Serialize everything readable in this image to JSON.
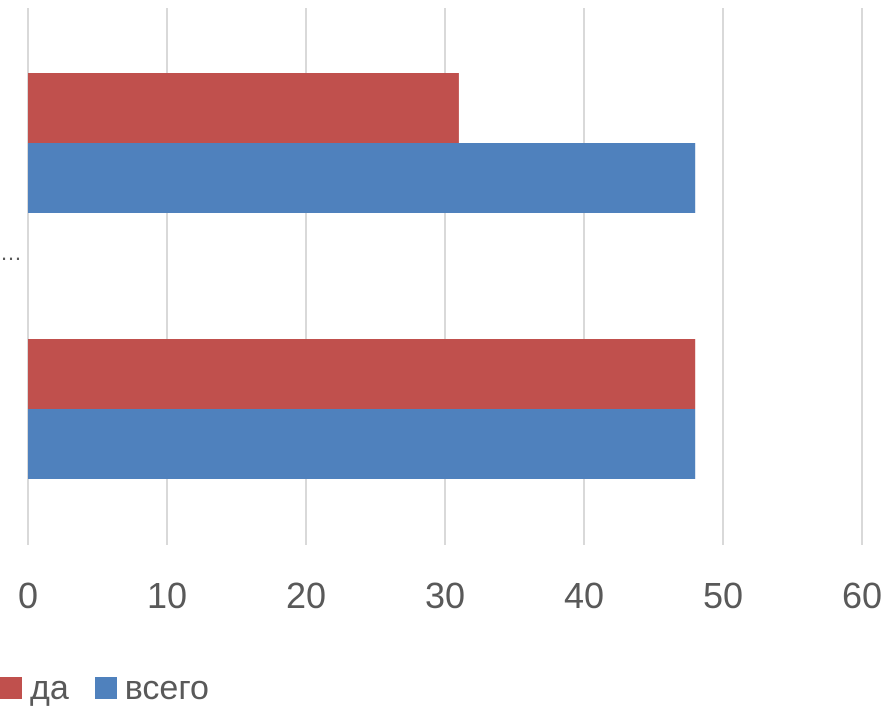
{
  "chart_data": {
    "type": "bar",
    "orientation": "horizontal",
    "categories": [
      "",
      "…"
    ],
    "series": [
      {
        "name": "да",
        "color": "#c0504d",
        "values": [
          48,
          31
        ]
      },
      {
        "name": "всего",
        "color": "#4f81bd",
        "values": [
          48,
          48
        ]
      }
    ],
    "xlim": [
      0,
      60
    ],
    "xticks": [
      "0",
      "10",
      "20",
      "30",
      "40",
      "50",
      "60"
    ],
    "grid": "vertical",
    "legend_position": "bottom-left"
  }
}
